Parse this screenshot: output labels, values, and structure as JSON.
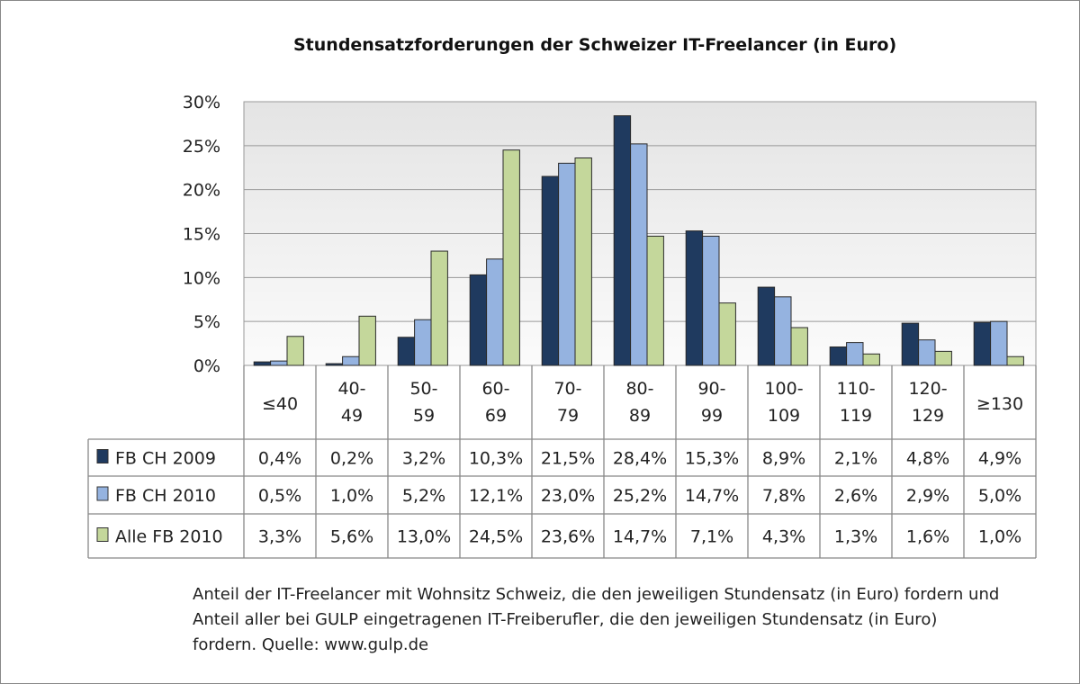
{
  "chart_data": {
    "type": "bar",
    "title": "Stundensatzforderungen der  Schweizer IT-Freelancer (in Euro)",
    "categories": [
      "≤40",
      "40-\n49",
      "50-\n59",
      "60-\n69",
      "70-\n79",
      "80-\n89",
      "90-\n99",
      "100-\n109",
      "110-\n119",
      "120-\n129",
      "≥130"
    ],
    "ylim": [
      0,
      30
    ],
    "yticks": [
      "0%",
      "5%",
      "10%",
      "15%",
      "20%",
      "25%",
      "30%"
    ],
    "grid": true,
    "legend": "data-table-left",
    "series": [
      {
        "name": "FB CH 2009",
        "color": "#1f3a5f",
        "values": [
          0.4,
          0.2,
          3.2,
          10.3,
          21.5,
          28.4,
          15.3,
          8.9,
          2.1,
          4.8,
          4.9
        ],
        "labels": [
          "0,4%",
          "0,2%",
          "3,2%",
          "10,3%",
          "21,5%",
          "28,4%",
          "15,3%",
          "8,9%",
          "2,1%",
          "4,8%",
          "4,9%"
        ]
      },
      {
        "name": "FB CH 2010",
        "color": "#95b3e0",
        "values": [
          0.5,
          1.0,
          5.2,
          12.1,
          23.0,
          25.2,
          14.7,
          7.8,
          2.6,
          2.9,
          5.0
        ],
        "labels": [
          "0,5%",
          "1,0%",
          "5,2%",
          "12,1%",
          "23,0%",
          "25,2%",
          "14,7%",
          "7,8%",
          "2,6%",
          "2,9%",
          "5,0%"
        ]
      },
      {
        "name": "Alle FB 2010",
        "color": "#c4d79b",
        "values": [
          3.3,
          5.6,
          13.0,
          24.5,
          23.6,
          14.7,
          7.1,
          4.3,
          1.3,
          1.6,
          1.0
        ],
        "labels": [
          "3,3%",
          "5,6%",
          "13,0%",
          "24,5%",
          "23,6%",
          "14,7%",
          "7,1%",
          "4,3%",
          "1,3%",
          "1,6%",
          "1,0%"
        ]
      }
    ]
  },
  "caption": "Anteil der IT-Freelancer mit Wohnsitz Schweiz, die den jeweiligen Stundensatz (in Euro) fordern und Anteil aller bei GULP eingetragenen IT-Freiberufler, die den jeweiligen Stundensatz (in Euro) fordern. Quelle: www.gulp.de"
}
